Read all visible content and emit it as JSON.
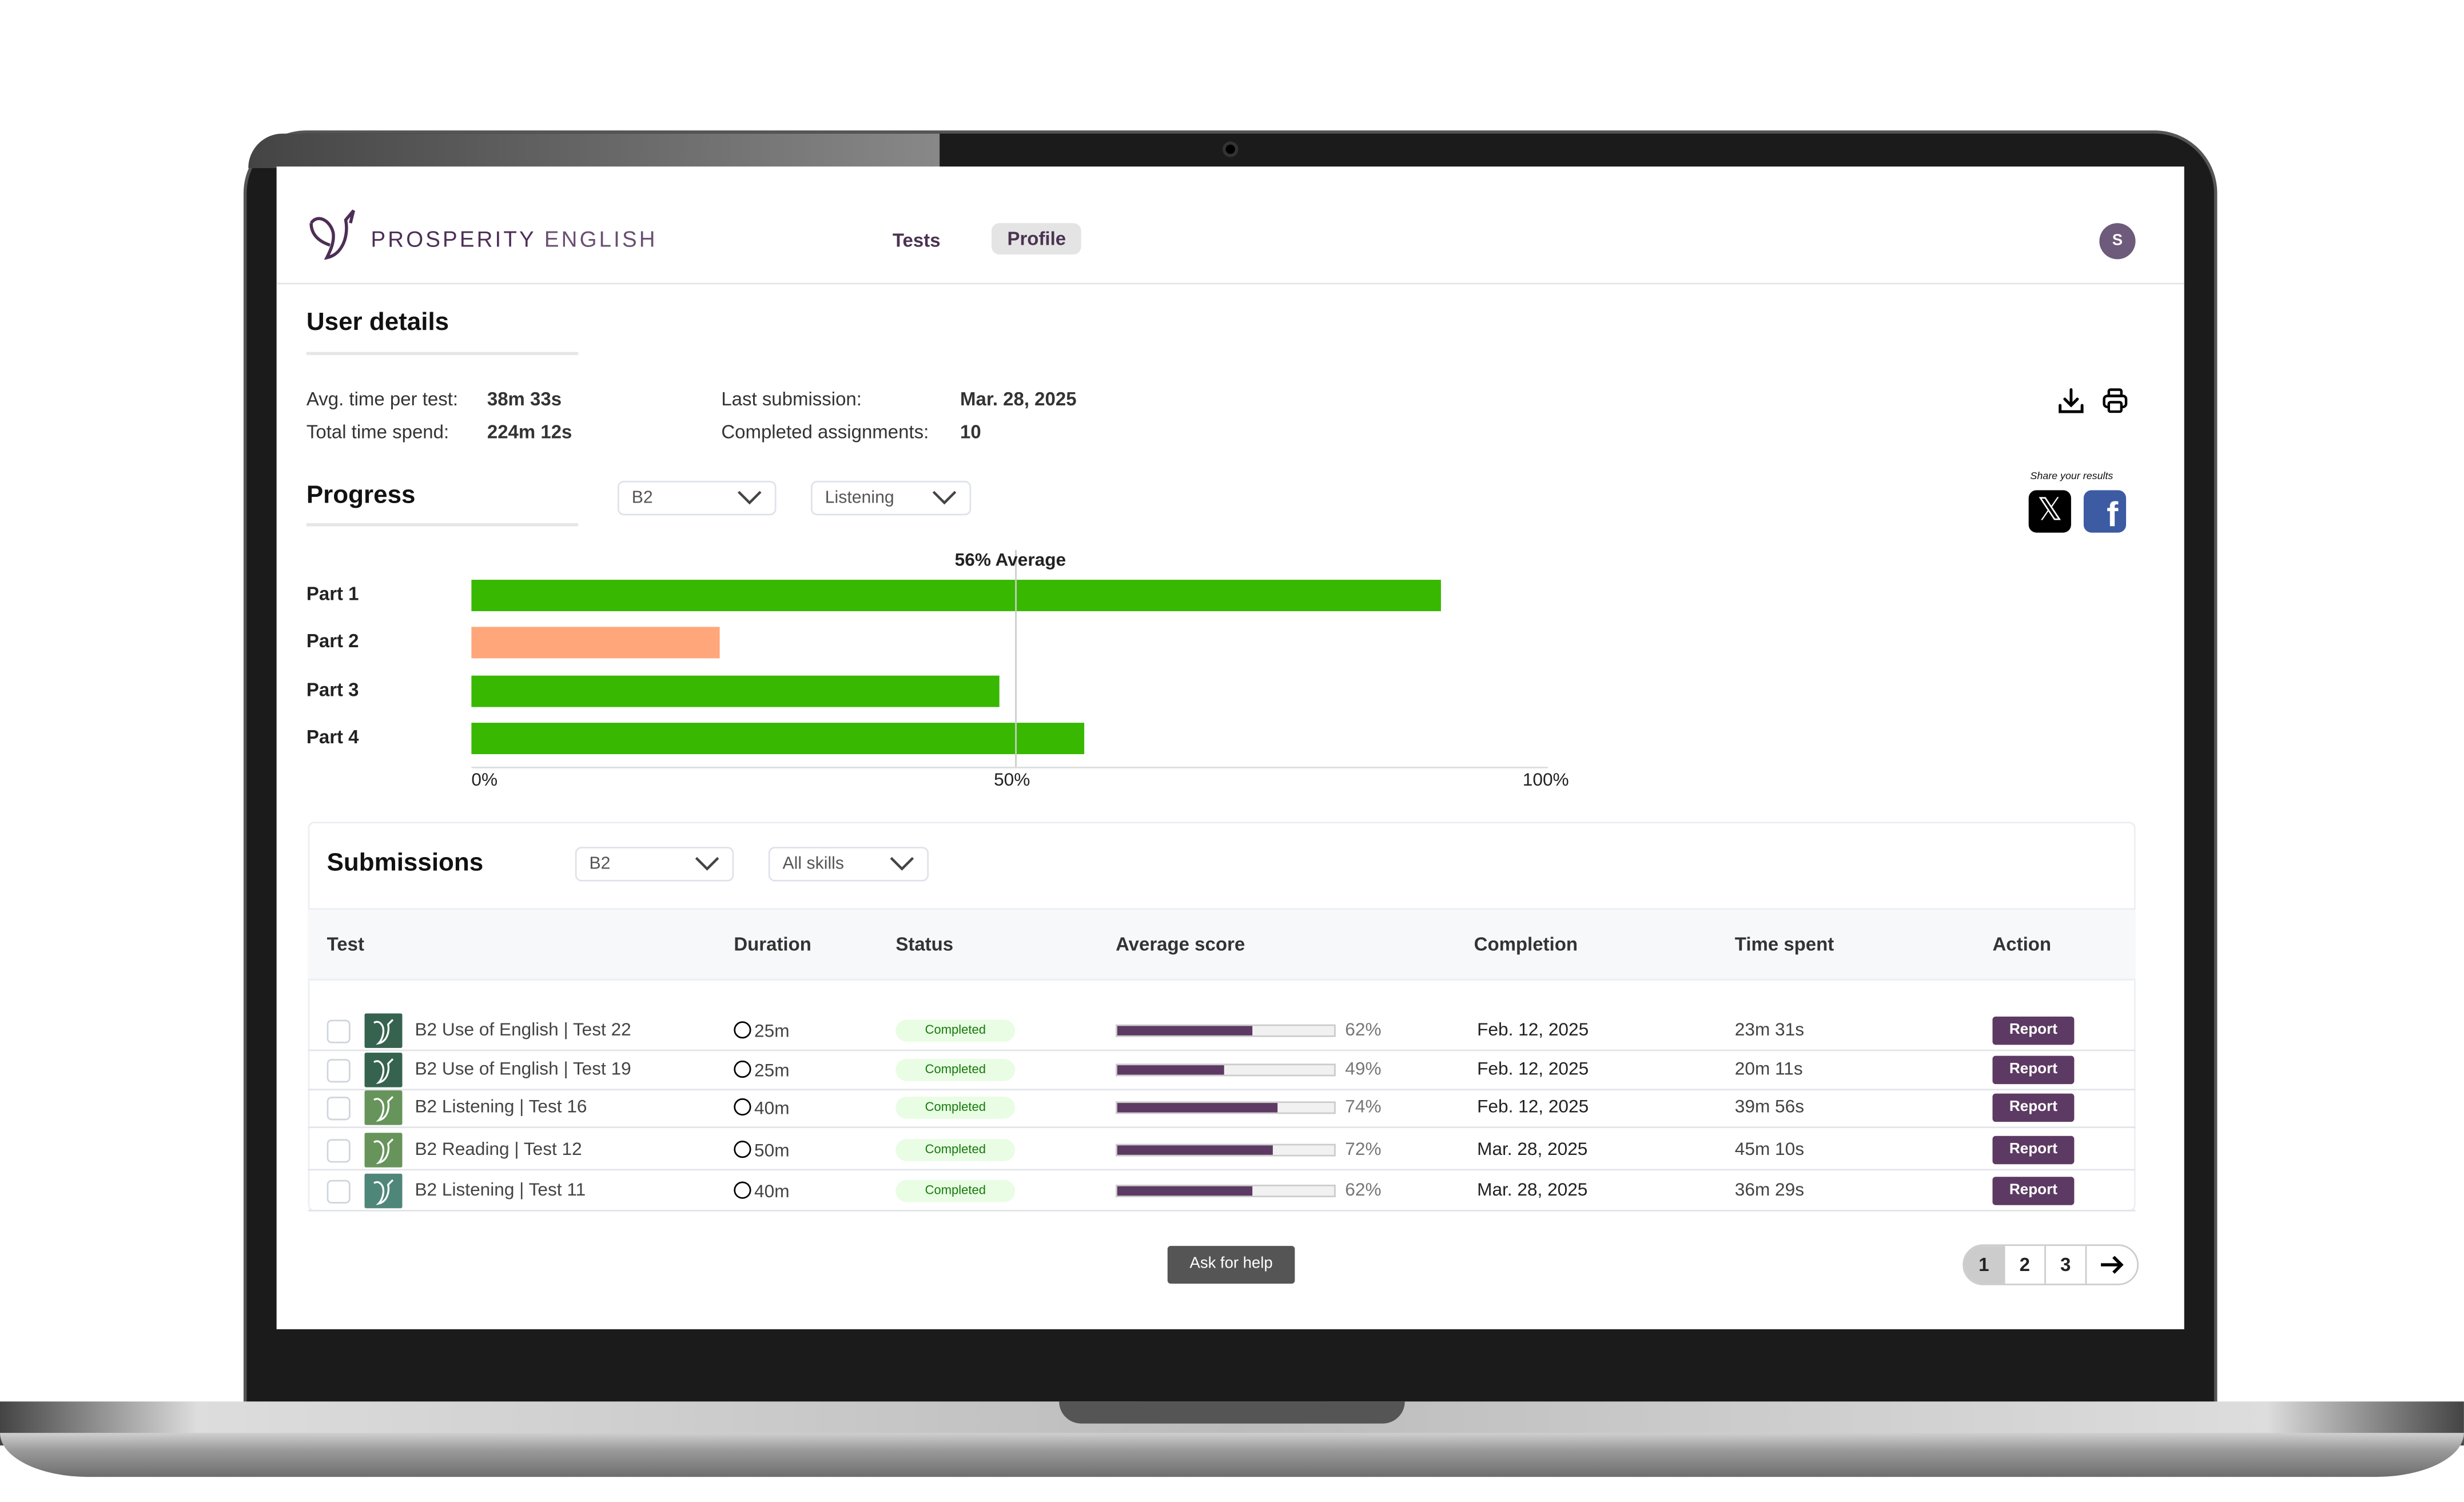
{
  "brand": {
    "name_bold": "PROSPERITY",
    "name_light": "ENGLISH"
  },
  "nav": {
    "tests": "Tests",
    "profile": "Profile",
    "avatar": "S"
  },
  "user_details": {
    "title": "User details",
    "avg_label": "Avg. time per test:",
    "avg_value": "38m 33s",
    "total_label": "Total time spend:",
    "total_value": "224m 12s",
    "last_label": "Last submission:",
    "last_value": "Mar. 28, 2025",
    "completed_label": "Completed assignments:",
    "completed_value": "10"
  },
  "actions": {
    "download": "download-icon",
    "print": "printer-icon",
    "share_label": "Share your results"
  },
  "progress": {
    "title": "Progress",
    "level": "B2",
    "skill": "Listening"
  },
  "chart_data": {
    "type": "bar",
    "orientation": "horizontal",
    "categories": [
      "Part 1",
      "Part 2",
      "Part 3",
      "Part 4"
    ],
    "values": [
      90,
      23,
      49,
      57
    ],
    "colors": [
      "#38b800",
      "#ffa67a",
      "#38b800",
      "#38b800"
    ],
    "xlim": [
      0,
      100
    ],
    "xticks": [
      "0%",
      "50%",
      "100%"
    ],
    "average": {
      "value": 56,
      "label": "56% Average"
    }
  },
  "submissions": {
    "title": "Submissions",
    "level": "B2",
    "skill": "All skills",
    "columns": [
      "Test",
      "Duration",
      "Status",
      "Average score",
      "Completion",
      "Time spent",
      "Action"
    ],
    "rows": [
      {
        "test": "B2 Use of English | Test 22",
        "duration": "25m",
        "status": "Completed",
        "score": 62,
        "score_label": "62%",
        "completion": "Feb. 12, 2025",
        "time": "23m 31s",
        "action": "Report",
        "color": "#35634f"
      },
      {
        "test": "B2 Use of English | Test 19",
        "duration": "25m",
        "status": "Completed",
        "score": 49,
        "score_label": "49%",
        "completion": "Feb. 12, 2025",
        "time": "20m 11s",
        "action": "Report",
        "color": "#35634f"
      },
      {
        "test": "B2 Listening | Test 16",
        "duration": "40m",
        "status": "Completed",
        "score": 74,
        "score_label": "74%",
        "completion": "Feb. 12, 2025",
        "time": "39m 56s",
        "action": "Report",
        "color": "#67945a"
      },
      {
        "test": "B2 Reading | Test 12",
        "duration": "50m",
        "status": "Completed",
        "score": 72,
        "score_label": "72%",
        "completion": "Mar. 28, 2025",
        "time": "45m 10s",
        "action": "Report",
        "color": "#67945a"
      },
      {
        "test": "B2 Listening | Test 11",
        "duration": "40m",
        "status": "Completed",
        "score": 62,
        "score_label": "62%",
        "completion": "Mar. 28, 2025",
        "time": "36m 29s",
        "action": "Report",
        "color": "#4f867a"
      }
    ]
  },
  "help": "Ask for help",
  "pagination": {
    "pages": [
      "1",
      "2",
      "3"
    ],
    "current": "1"
  }
}
